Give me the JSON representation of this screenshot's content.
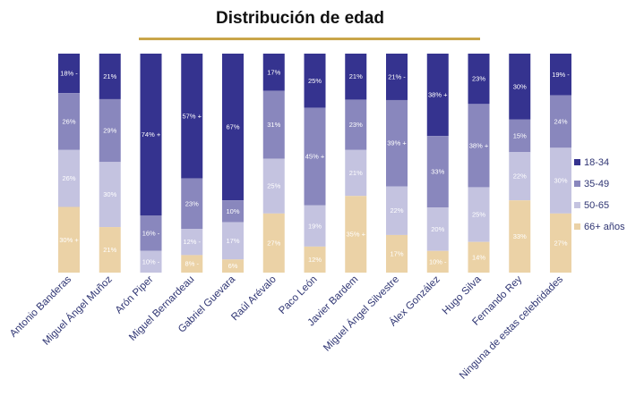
{
  "chart_data": {
    "type": "bar",
    "stacked": true,
    "percent": true,
    "title": "Distribución de edad",
    "xlabel": "",
    "ylabel": "",
    "ylim": [
      0,
      100
    ],
    "grid": false,
    "legend": {
      "position": "right",
      "items": [
        "18-34",
        "35-49",
        "50-65",
        "66+ años"
      ]
    },
    "categories": [
      "Antonio Banderas",
      "Miguel Ángel Muñoz",
      "Arón Piper",
      "Miguel Bernardeau",
      "Gabriel Guevara",
      "Raúl Arévalo",
      "Paco León",
      "Javier Bardem",
      "Miguel Ángel Silvestre",
      "Álex González",
      "Hugo Silva",
      "Fernando Rey",
      "Ninguna de estas celebridades"
    ],
    "series": [
      {
        "name": "18-34",
        "color": "#35338f",
        "values": [
          18,
          21,
          74,
          57,
          67,
          17,
          25,
          21,
          21,
          38,
          23,
          30,
          19
        ],
        "labels": [
          "18% -",
          "21%",
          "74% +",
          "57% +",
          "67%",
          "17%",
          "25%",
          "21%",
          "21% -",
          "38% +",
          "23%",
          "30%",
          "19% -"
        ]
      },
      {
        "name": "35-49",
        "color": "#8987bd",
        "values": [
          26,
          29,
          16,
          23,
          10,
          31,
          45,
          23,
          39,
          33,
          38,
          15,
          24
        ],
        "labels": [
          "26%",
          "29%",
          "16% -",
          "23%",
          "10%",
          "31%",
          "45% +",
          "23%",
          "39% +",
          "33%",
          "38% +",
          "15%",
          "24%"
        ]
      },
      {
        "name": "50-65",
        "color": "#c4c3e0",
        "values": [
          26,
          30,
          10,
          12,
          17,
          25,
          19,
          21,
          22,
          20,
          25,
          22,
          30
        ],
        "labels": [
          "26%",
          "30%",
          "10% -",
          "12% -",
          "17%",
          "25%",
          "19%",
          "21%",
          "22%",
          "20%",
          "25%",
          "22%",
          "30%"
        ]
      },
      {
        "name": "66+ años",
        "color": "#ebd2a6",
        "values": [
          30,
          21,
          0,
          8,
          6,
          27,
          12,
          35,
          17,
          10,
          14,
          33,
          27
        ],
        "labels": [
          "30% +",
          "21%",
          "",
          "8% -",
          "6%",
          "27%",
          "12%",
          "35% +",
          "17%",
          "10% -",
          "14%",
          "33%",
          "27%"
        ]
      }
    ]
  }
}
